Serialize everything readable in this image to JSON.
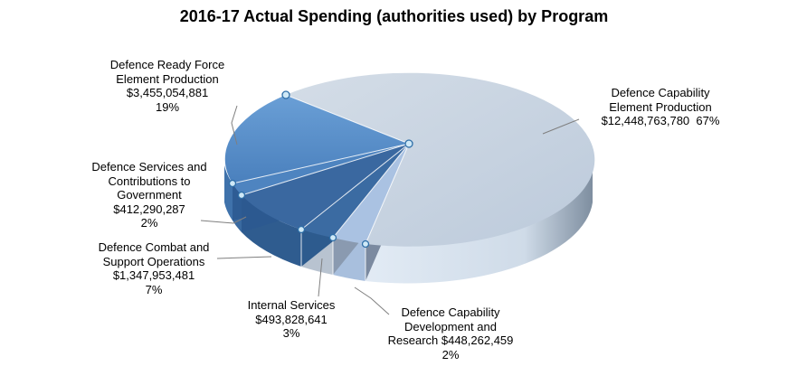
{
  "chart_data": {
    "type": "pie",
    "title": "2016-17 Actual Spending (authorities used) by Program",
    "slices": [
      {
        "name_lines": [
          "Defence Capability",
          "Element Production"
        ],
        "value": "$12,448,763,780",
        "percent": "67%",
        "percent_value": 67,
        "color": "#c9d4e0"
      },
      {
        "name_lines": [
          "Defence Capability",
          "Development and"
        ],
        "value_line": "Research $448,262,459",
        "value": "$448,262,459",
        "percent": "2%",
        "percent_value": 2,
        "color": "#a9c0e0"
      },
      {
        "name_lines": [
          "Internal Services"
        ],
        "value": "$493,828,641",
        "percent": "3%",
        "percent_value": 3,
        "color": "#b6c2d0"
      },
      {
        "name_lines": [
          "Defence Combat and",
          "Support Operations"
        ],
        "value": "$1,347,953,481",
        "percent": "7%",
        "percent_value": 7,
        "color": "#3c6ba3"
      },
      {
        "name_lines": [
          "Defence Services and",
          "Contributions to",
          "Government"
        ],
        "value": "$412,290,287",
        "percent": "2%",
        "percent_value": 2,
        "color": "#5088c4"
      },
      {
        "name_lines": [
          "Defence Ready Force",
          "Element Production"
        ],
        "value": "$3,455,054,881",
        "percent": "19%",
        "percent_value": 19,
        "color": "#5a90c8"
      }
    ]
  }
}
